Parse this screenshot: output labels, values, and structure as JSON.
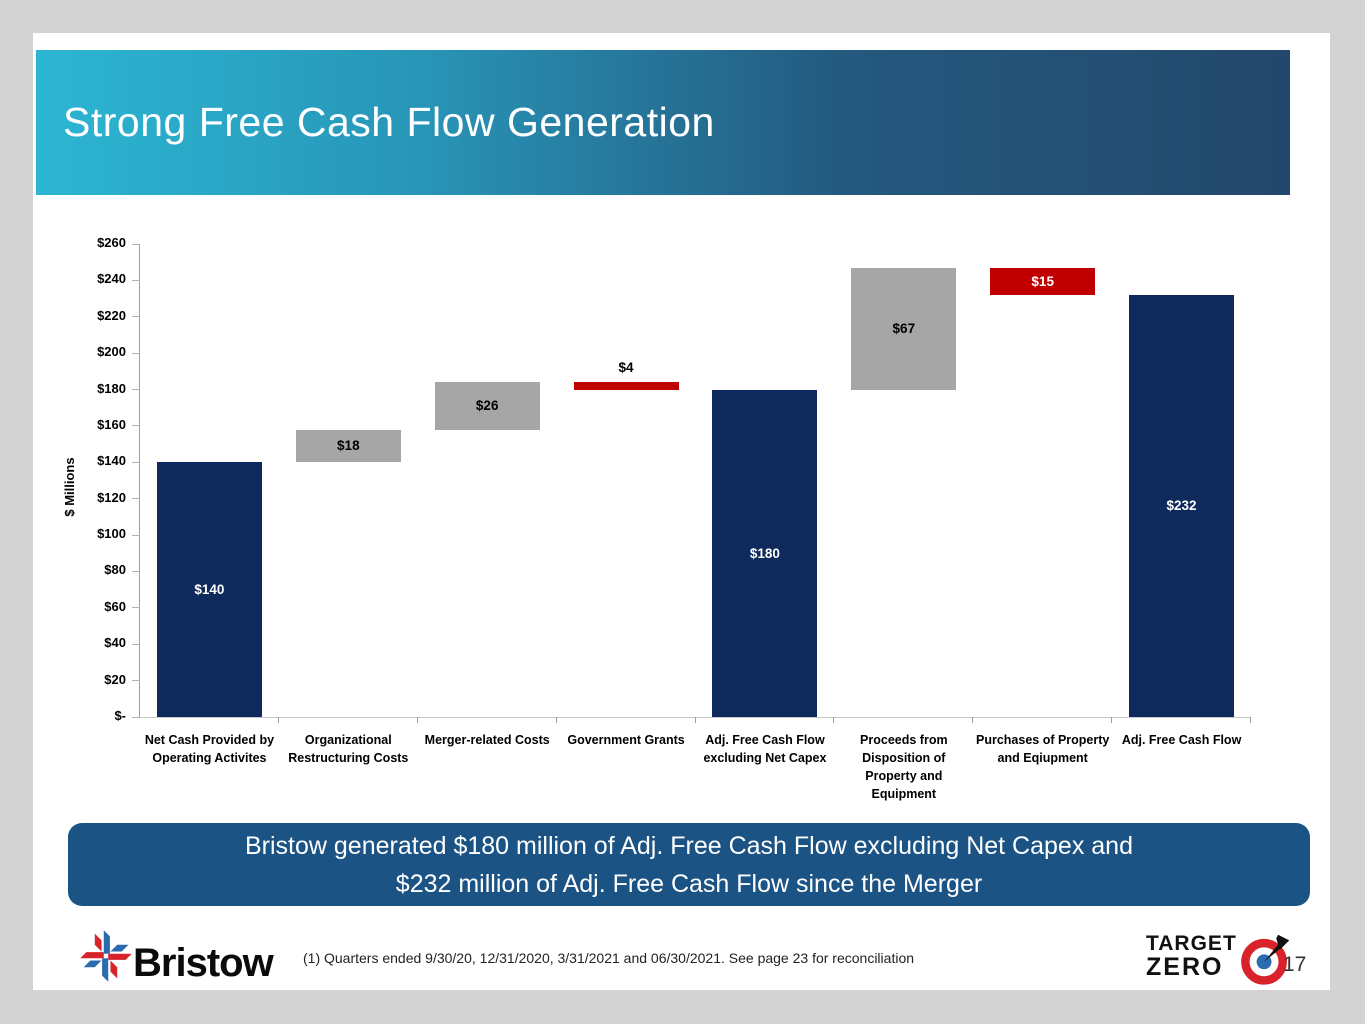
{
  "slide": {
    "title": "Strong Free Cash Flow Generation",
    "callout": {
      "line1": "Bristow generated $180 million of Adj. Free Cash Flow excluding Net Capex and",
      "line2": "$232 million of Adj. Free Cash Flow since the Merger"
    },
    "footnote": "(1) Quarters ended 9/30/20, 12/31/2020,  3/31/2021 and 06/30/2021. See page 23 for reconciliation",
    "page_number": "17",
    "logos": {
      "bristow_wordmark": "Bristow",
      "target_zero_line1": "TARGET",
      "target_zero_line2": "ZERO"
    }
  },
  "colors": {
    "navy": "#0e2a5c",
    "gray": "#a6a6a6",
    "red": "#c00000",
    "callout_bg": "#1b5384",
    "white": "#ffffff",
    "black": "#000000"
  },
  "chart_data": {
    "type": "bar",
    "subtype": "waterfall",
    "title": "",
    "xlabel": "",
    "ylabel": "$ Millions",
    "ylim": [
      0,
      260
    ],
    "ytick_step": 20,
    "ytick_labels": [
      "$-",
      "$20",
      "$40",
      "$60",
      "$80",
      "$100",
      "$120",
      "$140",
      "$160",
      "$180",
      "$200",
      "$220",
      "$240",
      "$260"
    ],
    "grid": false,
    "legend": false,
    "categories": [
      "Net Cash Provided by Operating Activites",
      "Organizational Restructuring Costs",
      "Merger-related Costs",
      "Government Grants",
      "Adj. Free Cash Flow excluding Net Capex",
      "Proceeds from Disposition of Property and Equipment",
      "Purchases of Property and Eqiupment",
      "Adj. Free Cash Flow"
    ],
    "bars": [
      {
        "category": "Net Cash Provided by Operating Activites",
        "category_lines": [
          "Net Cash Provided by",
          "Operating Activites"
        ],
        "from": 0,
        "to": 140,
        "value": 140,
        "label": "$140",
        "color_key": "navy",
        "label_style": "inside",
        "label_color": "white"
      },
      {
        "category": "Organizational Restructuring Costs",
        "category_lines": [
          "Organizational",
          "Restructuring Costs"
        ],
        "from": 140,
        "to": 158,
        "value": 18,
        "label": "$18",
        "color_key": "gray",
        "label_style": "inside",
        "label_color": "black"
      },
      {
        "category": "Merger-related Costs",
        "category_lines": [
          "Merger-related Costs"
        ],
        "from": 158,
        "to": 184,
        "value": 26,
        "label": "$26",
        "color_key": "gray",
        "label_style": "inside",
        "label_color": "black"
      },
      {
        "category": "Government Grants",
        "category_lines": [
          "Government Grants"
        ],
        "from": 184,
        "to": 180,
        "value": -4,
        "label": "$4",
        "color_key": "red",
        "label_style": "above",
        "label_color": "black"
      },
      {
        "category": "Adj. Free Cash Flow excluding Net Capex",
        "category_lines": [
          "Adj. Free Cash Flow",
          "excluding Net Capex"
        ],
        "from": 0,
        "to": 180,
        "value": 180,
        "label": "$180",
        "color_key": "navy",
        "label_style": "inside",
        "label_color": "white"
      },
      {
        "category": "Proceeds from Disposition of Property and Equipment",
        "category_lines": [
          "Proceeds from",
          "Disposition of",
          "Property and",
          "Equipment"
        ],
        "from": 180,
        "to": 247,
        "value": 67,
        "label": "$67",
        "color_key": "gray",
        "label_style": "inside",
        "label_color": "black"
      },
      {
        "category": "Purchases of Property and Eqiupment",
        "category_lines": [
          "Purchases of Property",
          "and Eqiupment"
        ],
        "from": 247,
        "to": 232,
        "value": -15,
        "label": "$15",
        "color_key": "red",
        "label_style": "inside",
        "label_color": "white"
      },
      {
        "category": "Adj. Free Cash Flow",
        "category_lines": [
          "Adj. Free Cash Flow"
        ],
        "from": 0,
        "to": 232,
        "value": 232,
        "label": "$232",
        "color_key": "navy",
        "label_style": "inside",
        "label_color": "white"
      }
    ]
  }
}
